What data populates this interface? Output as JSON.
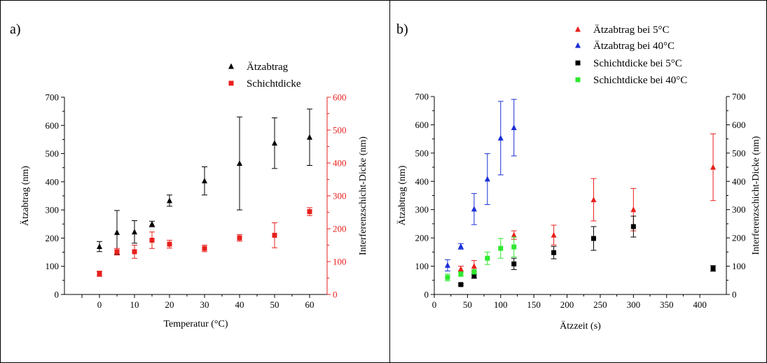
{
  "colors": {
    "black": "#000000",
    "red": "#e8201c",
    "blue": "#1a2ed6",
    "green": "#2fe82f"
  },
  "chart_data": [
    {
      "type": "scatter",
      "panel_label": "a)",
      "xlabel": "Temperatur (°C)",
      "ylabel": "Ätzabtrag (nm)",
      "y2label": "Interferenzschicht-Dicke (nm)",
      "xlim": [
        -10,
        65
      ],
      "ylim": [
        0,
        700
      ],
      "y2lim": [
        0,
        600
      ],
      "xticks": [
        0,
        10,
        20,
        30,
        40,
        50,
        60
      ],
      "yticks": [
        0,
        100,
        200,
        300,
        400,
        500,
        600,
        700
      ],
      "y2ticks": [
        0,
        100,
        200,
        300,
        400,
        500,
        600
      ],
      "legend_position": "top-right",
      "series": [
        {
          "name": "Ätzabtrag",
          "axis": "left",
          "marker": "triangle",
          "color": "#000000",
          "x": [
            0,
            5,
            10,
            15,
            20,
            30,
            40,
            50,
            60
          ],
          "y": [
            170,
            220,
            222,
            250,
            333,
            403,
            465,
            537,
            558
          ],
          "err": [
            18,
            78,
            40,
            10,
            20,
            50,
            165,
            90,
            100
          ]
        },
        {
          "name": "Schichtdicke",
          "axis": "right",
          "marker": "square",
          "color": "#e8201c",
          "x": [
            0,
            5,
            10,
            15,
            20,
            30,
            40,
            50,
            60
          ],
          "y": [
            63,
            130,
            130,
            165,
            153,
            140,
            172,
            180,
            252
          ],
          "err": [
            8,
            10,
            20,
            25,
            12,
            10,
            10,
            38,
            12
          ]
        }
      ]
    },
    {
      "type": "scatter",
      "panel_label": "b)",
      "xlabel": "Ätzzeit (s)",
      "ylabel": "Ätzabtrag (nm)",
      "y2label": "Interferenzschicht-Dicke (nm)",
      "xlim": [
        0,
        440
      ],
      "ylim": [
        0,
        700
      ],
      "y2lim": [
        0,
        700
      ],
      "xticks": [
        0,
        50,
        100,
        150,
        200,
        250,
        300,
        350,
        400
      ],
      "yticks": [
        0,
        100,
        200,
        300,
        400,
        500,
        600,
        700
      ],
      "y2ticks": [
        0,
        100,
        200,
        300,
        400,
        500,
        600,
        700
      ],
      "legend_position": "top-right",
      "series": [
        {
          "name": "Ätzabtrag bei 5°C",
          "axis": "left",
          "marker": "triangle",
          "color": "#e8201c",
          "x": [
            40,
            60,
            120,
            180,
            240,
            300,
            420
          ],
          "y": [
            90,
            100,
            210,
            210,
            335,
            300,
            450
          ],
          "err": [
            10,
            20,
            15,
            35,
            75,
            75,
            118
          ]
        },
        {
          "name": "Ätzabtrag bei 40°C",
          "axis": "left",
          "marker": "triangle",
          "color": "#1a2ed6",
          "x": [
            20,
            40,
            60,
            80,
            100,
            120
          ],
          "y": [
            103,
            170,
            302,
            408,
            553,
            590
          ],
          "err": [
            20,
            10,
            55,
            90,
            130,
            100
          ]
        },
        {
          "name": "Schichtdicke bei 5°C",
          "axis": "right",
          "marker": "square",
          "color": "#000000",
          "x": [
            40,
            60,
            120,
            180,
            240,
            300,
            420
          ],
          "y": [
            35,
            65,
            108,
            148,
            198,
            240,
            92
          ],
          "err": [
            3,
            8,
            20,
            22,
            42,
            37,
            10
          ]
        },
        {
          "name": "Schichtdicke bei 40°C",
          "axis": "right",
          "marker": "square",
          "color": "#2fe82f",
          "x": [
            20,
            40,
            60,
            80,
            100,
            120
          ],
          "y": [
            60,
            72,
            80,
            128,
            163,
            168
          ],
          "err": [
            12,
            8,
            8,
            22,
            35,
            35
          ]
        }
      ]
    }
  ]
}
